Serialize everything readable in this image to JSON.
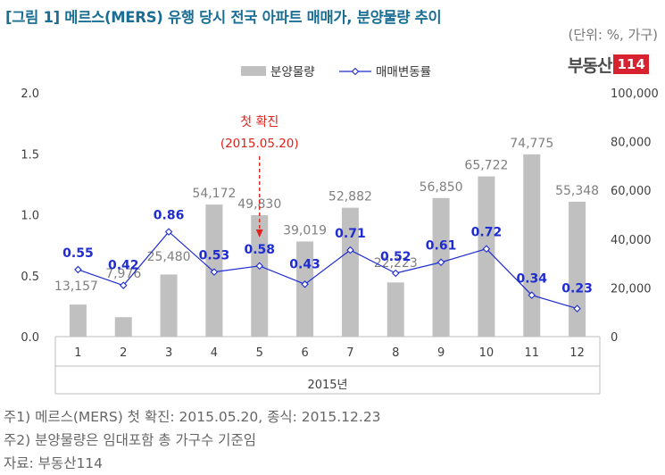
{
  "title": "[그림 1] 메르스(MERS) 유행 당시 전국 아파트 매매가, 분양물량 추이",
  "unit": "(단위: %, 가구)",
  "brand": {
    "text": "부동산",
    "number": "114"
  },
  "notes": [
    "주1) 메르스(MERS) 첫 확진: 2015.05.20, 종식: 2015.12.23",
    "주2) 분양물량은 임대포함 총 가구수 기준임",
    "자료: 부동산114"
  ],
  "annotation": {
    "label": "첫 확진",
    "date": "(2015.05.20)"
  },
  "colors": {
    "bar": "#c0c0c0",
    "bar_label": "#7f7f7f",
    "line": "#1f2cd0",
    "line_label": "#1f2cd0",
    "annotation": "#e0201b"
  },
  "chart_data": {
    "type": "bar",
    "categories": [
      "1",
      "2",
      "3",
      "4",
      "5",
      "6",
      "7",
      "8",
      "9",
      "10",
      "11",
      "12"
    ],
    "xlabel": "2015년",
    "series": [
      {
        "name": "분양물량",
        "kind": "bar",
        "axis": "right",
        "values": [
          13157,
          7976,
          25480,
          54172,
          49830,
          39019,
          52882,
          22223,
          56850,
          65722,
          74775,
          55348
        ],
        "labels": [
          "13,157",
          "7,976",
          "25,480",
          "54,172",
          "49,830",
          "39,019",
          "52,882",
          "22,223",
          "56,850",
          "65,722",
          "74,775",
          "55,348"
        ]
      },
      {
        "name": "매매변동률",
        "kind": "line",
        "axis": "left",
        "values": [
          0.55,
          0.42,
          0.86,
          0.53,
          0.58,
          0.43,
          0.71,
          0.52,
          0.61,
          0.72,
          0.34,
          0.23
        ],
        "labels": [
          "0.55",
          "0.42",
          "0.86",
          "0.53",
          "0.58",
          "0.43",
          "0.71",
          "0.52",
          "0.61",
          "0.72",
          "0.34",
          "0.23"
        ]
      }
    ],
    "y_left": {
      "ylim": [
        0,
        2.0
      ],
      "ticks": [
        "0.0",
        "0.5",
        "1.0",
        "1.5",
        "2.0"
      ]
    },
    "y_right": {
      "ylim": [
        0,
        100000
      ],
      "ticks": [
        "0",
        "20,000",
        "40,000",
        "60,000",
        "80,000",
        "100,000"
      ]
    },
    "legend_position": "top-center",
    "grid": false
  }
}
